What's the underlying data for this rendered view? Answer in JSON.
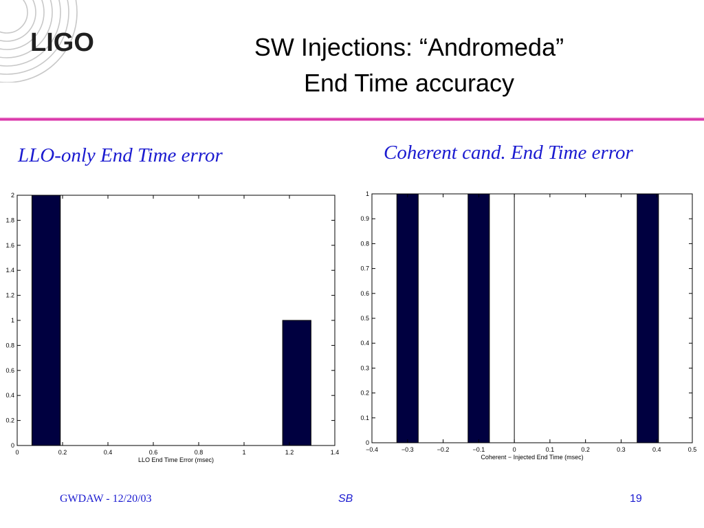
{
  "slide": {
    "logo_text": "LIGO",
    "title_line1": "SW Injections: “Andromeda”",
    "title_line2": "End Time accuracy",
    "footer_left": "GWDAW - 12/20/03",
    "footer_center": "SB",
    "footer_right": "19",
    "accent_color": "#d31a9c",
    "text_blue": "#1b1bd0",
    "bar_color": "#000040"
  },
  "chart_data": [
    {
      "type": "bar",
      "subtitle": "LLO-only End Time error",
      "xlabel": "LLO End Time Error (msec)",
      "ylabel": "",
      "xlim": [
        0,
        1.4
      ],
      "ylim": [
        0,
        2
      ],
      "xticks": [
        0,
        0.2,
        0.4,
        0.6,
        0.8,
        1,
        1.2,
        1.4
      ],
      "xtick_labels": [
        "0",
        "0.2",
        "0.4",
        "0.6",
        "0.8",
        "1",
        "1.2",
        "1.4"
      ],
      "yticks": [
        0,
        0.2,
        0.4,
        0.6,
        0.8,
        1,
        1.2,
        1.4,
        1.6,
        1.8,
        2
      ],
      "ytick_labels": [
        "0",
        "0.2",
        "0.4",
        "0.6",
        "0.8",
        "1",
        "1.2",
        "1.4",
        "1.6",
        "1.8",
        "2"
      ],
      "bars": [
        {
          "x0": 0.065,
          "x1": 0.19,
          "value": 2
        },
        {
          "x0": 1.17,
          "x1": 1.295,
          "value": 1
        }
      ],
      "vlines": [],
      "grid": false
    },
    {
      "type": "bar",
      "subtitle": "Coherent cand. End Time error",
      "xlabel": "Coherent − Injected End Time (msec)",
      "ylabel": "",
      "xlim": [
        -0.4,
        0.5
      ],
      "ylim": [
        0,
        1
      ],
      "xticks": [
        -0.4,
        -0.3,
        -0.2,
        -0.1,
        0,
        0.1,
        0.2,
        0.3,
        0.4,
        0.5
      ],
      "xtick_labels": [
        "−0.4",
        "−0.3",
        "−0.2",
        "−0.1",
        "0",
        "0.1",
        "0.2",
        "0.3",
        "0.4",
        "0.5"
      ],
      "yticks": [
        0,
        0.1,
        0.2,
        0.3,
        0.4,
        0.5,
        0.6,
        0.7,
        0.8,
        0.9,
        1
      ],
      "ytick_labels": [
        "0",
        "0.1",
        "0.2",
        "0.3",
        "0.4",
        "0.5",
        "0.6",
        "0.7",
        "0.8",
        "0.9",
        "1"
      ],
      "bars": [
        {
          "x0": -0.33,
          "x1": -0.27,
          "value": 1
        },
        {
          "x0": -0.13,
          "x1": -0.07,
          "value": 1
        },
        {
          "x0": 0.345,
          "x1": 0.405,
          "value": 1
        }
      ],
      "vlines": [
        0
      ],
      "grid": false
    }
  ]
}
